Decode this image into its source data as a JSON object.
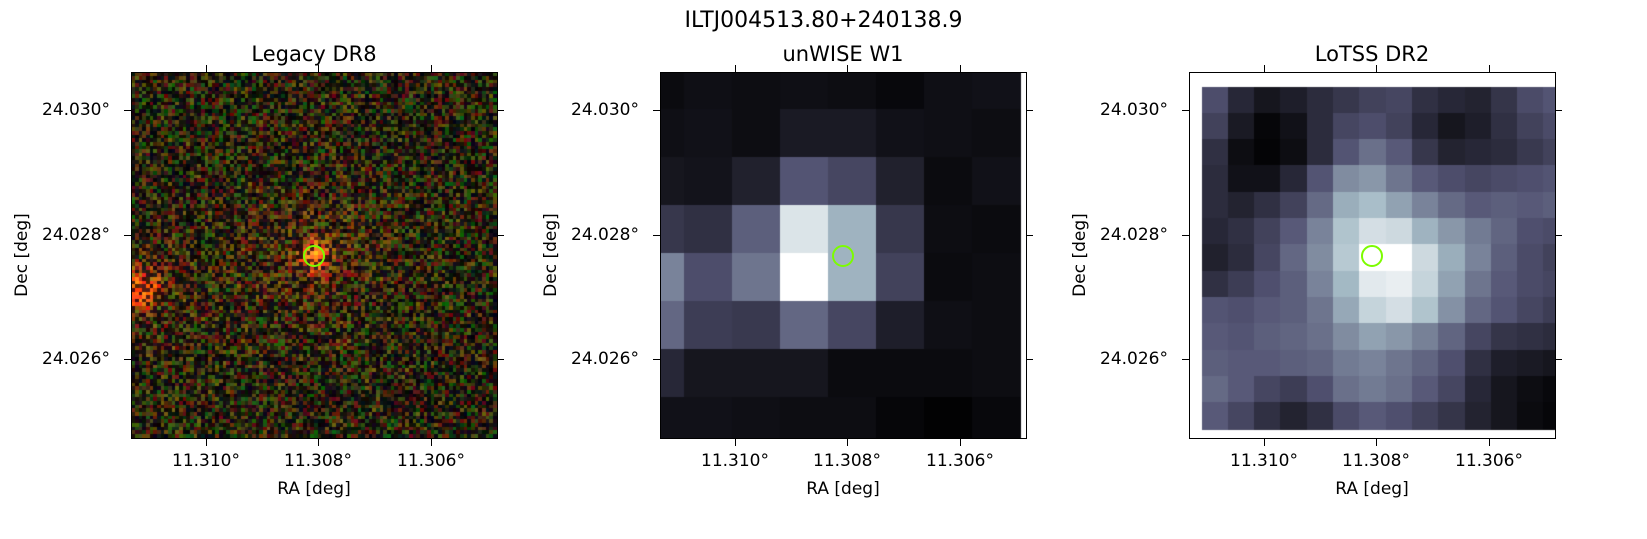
{
  "figure": {
    "title": "ILTJ004513.80+240138.9",
    "marker_color": "#7cfc00",
    "panels": [
      {
        "title": "Legacy DR8",
        "xlabel": "RA [deg]",
        "ylabel": "Dec [deg]",
        "xticks": [
          "11.310°",
          "11.308°",
          "11.306°"
        ],
        "yticks": [
          "24.030°",
          "24.028°",
          "24.026°"
        ],
        "style": "rgb-noise"
      },
      {
        "title": "unWISE W1",
        "xlabel": "RA [deg]",
        "ylabel": "Dec [deg]",
        "xticks": [
          "11.310°",
          "11.308°",
          "11.306°"
        ],
        "yticks": [
          "24.030°",
          "24.028°",
          "24.026°"
        ],
        "style": "bone-grid",
        "grid": [
          [
            0.05,
            0.07,
            0.06,
            0.07,
            0.06,
            0.04,
            0.07,
            0.08
          ],
          [
            0.07,
            0.08,
            0.06,
            0.12,
            0.12,
            0.08,
            0.07,
            0.06
          ],
          [
            0.1,
            0.09,
            0.15,
            0.38,
            0.32,
            0.15,
            0.05,
            0.08
          ],
          [
            0.25,
            0.22,
            0.42,
            0.9,
            0.72,
            0.25,
            0.06,
            0.05
          ],
          [
            0.55,
            0.35,
            0.5,
            1.0,
            0.72,
            0.3,
            0.05,
            0.06
          ],
          [
            0.45,
            0.28,
            0.26,
            0.45,
            0.32,
            0.14,
            0.07,
            0.06
          ],
          [
            0.18,
            0.1,
            0.1,
            0.1,
            0.05,
            0.05,
            0.05,
            0.06
          ],
          [
            0.08,
            0.08,
            0.07,
            0.06,
            0.06,
            0.03,
            0.01,
            0.04
          ]
        ]
      },
      {
        "title": "LoTSS DR2",
        "xlabel": "RA [deg]",
        "ylabel": "Dec [deg]",
        "xticks": [
          "11.310°",
          "11.308°",
          "11.306°"
        ],
        "yticks": [
          "24.030°",
          "24.028°",
          "24.026°"
        ],
        "style": "bone-grid",
        "grid": [
          [
            0.35,
            0.18,
            0.1,
            0.14,
            0.2,
            0.25,
            0.3,
            0.32,
            0.22,
            0.18,
            0.16,
            0.24,
            0.34,
            0.38
          ],
          [
            0.3,
            0.12,
            0.03,
            0.08,
            0.2,
            0.32,
            0.35,
            0.3,
            0.18,
            0.1,
            0.14,
            0.22,
            0.3,
            0.34
          ],
          [
            0.22,
            0.06,
            0.02,
            0.06,
            0.2,
            0.38,
            0.48,
            0.4,
            0.25,
            0.16,
            0.18,
            0.2,
            0.26,
            0.3
          ],
          [
            0.2,
            0.08,
            0.08,
            0.18,
            0.38,
            0.58,
            0.62,
            0.5,
            0.4,
            0.35,
            0.32,
            0.34,
            0.36,
            0.38
          ],
          [
            0.2,
            0.16,
            0.22,
            0.3,
            0.46,
            0.7,
            0.76,
            0.66,
            0.55,
            0.46,
            0.4,
            0.42,
            0.4,
            0.42
          ],
          [
            0.18,
            0.22,
            0.3,
            0.4,
            0.55,
            0.78,
            0.88,
            0.86,
            0.72,
            0.62,
            0.52,
            0.44,
            0.36,
            0.34
          ],
          [
            0.15,
            0.2,
            0.32,
            0.45,
            0.58,
            0.8,
            1.0,
            1.0,
            0.86,
            0.7,
            0.55,
            0.42,
            0.34,
            0.3
          ],
          [
            0.22,
            0.28,
            0.36,
            0.42,
            0.55,
            0.74,
            0.92,
            0.94,
            0.84,
            0.66,
            0.5,
            0.4,
            0.34,
            0.32
          ],
          [
            0.38,
            0.36,
            0.4,
            0.42,
            0.5,
            0.68,
            0.84,
            0.88,
            0.78,
            0.6,
            0.45,
            0.38,
            0.32,
            0.28
          ],
          [
            0.4,
            0.38,
            0.42,
            0.44,
            0.48,
            0.58,
            0.66,
            0.62,
            0.54,
            0.44,
            0.32,
            0.24,
            0.22,
            0.2
          ],
          [
            0.42,
            0.4,
            0.4,
            0.42,
            0.44,
            0.52,
            0.55,
            0.5,
            0.44,
            0.36,
            0.22,
            0.14,
            0.12,
            0.1
          ],
          [
            0.46,
            0.4,
            0.32,
            0.28,
            0.36,
            0.48,
            0.52,
            0.48,
            0.4,
            0.32,
            0.18,
            0.1,
            0.06,
            0.04
          ],
          [
            0.4,
            0.32,
            0.22,
            0.16,
            0.22,
            0.34,
            0.4,
            0.36,
            0.3,
            0.24,
            0.16,
            0.1,
            0.05,
            0.03
          ]
        ]
      }
    ]
  }
}
